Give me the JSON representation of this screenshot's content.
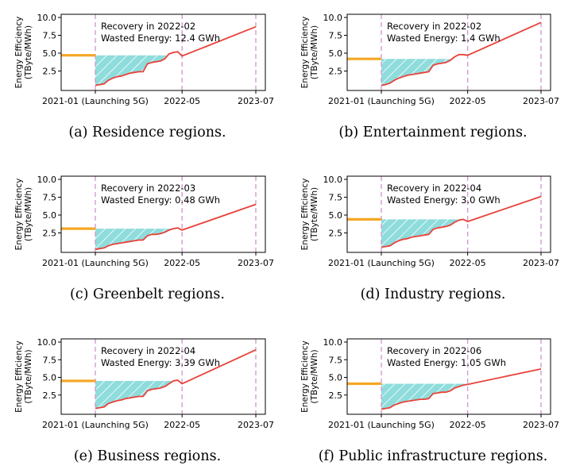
{
  "chart_data": [
    {
      "type": "line",
      "caption": "(a)  Residence regions.",
      "ylabel": [
        "Energy Efficiency",
        "(TByte/MWh)"
      ],
      "ylim": [
        0,
        10
      ],
      "yticks": [
        "2.5",
        "5.0",
        "7.5",
        "10.0"
      ],
      "xticks": [
        "2021-01 (Launching 5G)",
        "2022-05",
        "2023-07"
      ],
      "baseline": 4.7,
      "annotation": [
        "Recovery in 2022-02",
        "Wasted Energy: 12.4 GWh"
      ],
      "series": [
        {
          "values": [
            [
              0,
              0.5
            ],
            [
              1,
              0.6
            ],
            [
              2,
              0.7
            ],
            [
              3,
              1.2
            ],
            [
              4,
              1.5
            ],
            [
              5,
              1.7
            ],
            [
              6,
              1.8
            ],
            [
              7,
              2.0
            ],
            [
              8,
              2.2
            ],
            [
              9,
              2.3
            ],
            [
              10,
              2.4
            ],
            [
              11,
              2.4
            ],
            [
              12,
              3.5
            ],
            [
              13,
              3.7
            ],
            [
              14,
              3.8
            ],
            [
              15,
              3.9
            ],
            [
              16,
              4.2
            ],
            [
              17,
              4.9
            ],
            [
              18,
              5.1
            ],
            [
              19,
              5.2
            ],
            [
              20,
              4.6
            ],
            [
              37,
              8.7
            ]
          ]
        }
      ]
    },
    {
      "type": "line",
      "caption": "(b)  Entertainment regions.",
      "ylabel": [
        "Energy Efficiency",
        "(TByte/MWh)"
      ],
      "ylim": [
        0,
        10
      ],
      "yticks": [
        "2.5",
        "5.0",
        "7.5",
        "10.0"
      ],
      "xticks": [
        "2021-01 (Launching 5G)",
        "2022-05",
        "2023-07"
      ],
      "baseline": 4.2,
      "annotation": [
        "Recovery in 2022-02",
        "Wasted Energy: 1.4 GWh"
      ],
      "series": [
        {
          "values": [
            [
              0,
              0.5
            ],
            [
              1,
              0.6
            ],
            [
              2,
              0.8
            ],
            [
              3,
              1.2
            ],
            [
              4,
              1.5
            ],
            [
              5,
              1.7
            ],
            [
              6,
              1.9
            ],
            [
              7,
              2.0
            ],
            [
              8,
              2.1
            ],
            [
              9,
              2.2
            ],
            [
              10,
              2.3
            ],
            [
              11,
              2.4
            ],
            [
              12,
              3.3
            ],
            [
              13,
              3.5
            ],
            [
              14,
              3.6
            ],
            [
              15,
              3.7
            ],
            [
              16,
              4.0
            ],
            [
              17,
              4.5
            ],
            [
              18,
              4.8
            ],
            [
              19,
              4.8
            ],
            [
              20,
              4.7
            ],
            [
              37,
              9.3
            ]
          ]
        }
      ]
    },
    {
      "type": "line",
      "caption": "(c)  Greenbelt regions.",
      "ylabel": [
        "Energy Efficiency",
        "(TByte/MWh)"
      ],
      "ylim": [
        0,
        10
      ],
      "yticks": [
        "2.5",
        "5.0",
        "7.5",
        "10.0"
      ],
      "xticks": [
        "2021-01 (Launching 5G)",
        "2022-05",
        "2023-07"
      ],
      "baseline": 3.1,
      "annotation": [
        "Recovery in 2022-03",
        "Wasted Energy: 0.48 GWh"
      ],
      "series": [
        {
          "values": [
            [
              0,
              0.2
            ],
            [
              1,
              0.3
            ],
            [
              2,
              0.4
            ],
            [
              3,
              0.7
            ],
            [
              4,
              0.9
            ],
            [
              5,
              1.0
            ],
            [
              6,
              1.1
            ],
            [
              7,
              1.2
            ],
            [
              8,
              1.3
            ],
            [
              9,
              1.4
            ],
            [
              10,
              1.5
            ],
            [
              11,
              1.5
            ],
            [
              12,
              2.1
            ],
            [
              13,
              2.3
            ],
            [
              14,
              2.3
            ],
            [
              15,
              2.4
            ],
            [
              16,
              2.6
            ],
            [
              17,
              2.9
            ],
            [
              18,
              3.1
            ],
            [
              19,
              3.2
            ],
            [
              20,
              2.9
            ],
            [
              37,
              6.5
            ]
          ]
        }
      ]
    },
    {
      "type": "line",
      "caption": "(d)  Industry regions.",
      "ylabel": [
        "Energy Efficiency",
        "(TByte/MWh)"
      ],
      "ylim": [
        0,
        10
      ],
      "yticks": [
        "2.5",
        "5.0",
        "7.5",
        "10.0"
      ],
      "xticks": [
        "2021-01 (Launching 5G)",
        "2022-05",
        "2023-07"
      ],
      "baseline": 4.4,
      "annotation": [
        "Recovery in 2022-04",
        "Wasted Energy: 3.0 GWh"
      ],
      "series": [
        {
          "values": [
            [
              0,
              0.5
            ],
            [
              1,
              0.6
            ],
            [
              2,
              0.7
            ],
            [
              3,
              1.1
            ],
            [
              4,
              1.4
            ],
            [
              5,
              1.6
            ],
            [
              6,
              1.7
            ],
            [
              7,
              1.9
            ],
            [
              8,
              2.0
            ],
            [
              9,
              2.1
            ],
            [
              10,
              2.2
            ],
            [
              11,
              2.3
            ],
            [
              12,
              3.0
            ],
            [
              13,
              3.2
            ],
            [
              14,
              3.3
            ],
            [
              15,
              3.4
            ],
            [
              16,
              3.6
            ],
            [
              17,
              4.0
            ],
            [
              18,
              4.3
            ],
            [
              19,
              4.4
            ],
            [
              20,
              4.1
            ],
            [
              37,
              7.6
            ]
          ]
        }
      ]
    },
    {
      "type": "line",
      "caption": "(e)  Business regions.",
      "ylabel": [
        "Energy Efficiency",
        "(TByte/MWh)"
      ],
      "ylim": [
        0,
        10
      ],
      "yticks": [
        "2.5",
        "5.0",
        "7.5",
        "10.0"
      ],
      "xticks": [
        "2021-01 (Launching 5G)",
        "2022-05",
        "2023-07"
      ],
      "baseline": 4.5,
      "annotation": [
        "Recovery in 2022-04",
        "Wasted Energy: 3.39 GWh"
      ],
      "series": [
        {
          "values": [
            [
              0,
              0.6
            ],
            [
              1,
              0.7
            ],
            [
              2,
              0.8
            ],
            [
              3,
              1.3
            ],
            [
              4,
              1.5
            ],
            [
              5,
              1.7
            ],
            [
              6,
              1.8
            ],
            [
              7,
              2.0
            ],
            [
              8,
              2.1
            ],
            [
              9,
              2.2
            ],
            [
              10,
              2.3
            ],
            [
              11,
              2.3
            ],
            [
              12,
              3.1
            ],
            [
              13,
              3.3
            ],
            [
              14,
              3.4
            ],
            [
              15,
              3.5
            ],
            [
              16,
              3.7
            ],
            [
              17,
              4.1
            ],
            [
              18,
              4.5
            ],
            [
              19,
              4.6
            ],
            [
              20,
              4.1
            ],
            [
              37,
              8.9
            ]
          ]
        }
      ]
    },
    {
      "type": "line",
      "caption": "(f)  Public infrastructure regions.",
      "ylabel": [
        "Energy Efficiency",
        "(TByte/MWh)"
      ],
      "ylim": [
        0,
        10
      ],
      "yticks": [
        "2.5",
        "5.0",
        "7.5",
        "10.0"
      ],
      "xticks": [
        "2021-01 (Launching 5G)",
        "2022-05",
        "2023-07"
      ],
      "baseline": 4.1,
      "annotation": [
        "Recovery in 2022-06",
        "Wasted Energy: 1.05 GWh"
      ],
      "series": [
        {
          "values": [
            [
              0,
              0.5
            ],
            [
              1,
              0.6
            ],
            [
              2,
              0.7
            ],
            [
              3,
              1.1
            ],
            [
              4,
              1.3
            ],
            [
              5,
              1.5
            ],
            [
              6,
              1.6
            ],
            [
              7,
              1.7
            ],
            [
              8,
              1.8
            ],
            [
              9,
              1.9
            ],
            [
              10,
              1.9
            ],
            [
              11,
              2.0
            ],
            [
              12,
              2.7
            ],
            [
              13,
              2.8
            ],
            [
              14,
              2.9
            ],
            [
              15,
              2.9
            ],
            [
              16,
              3.1
            ],
            [
              17,
              3.5
            ],
            [
              18,
              3.7
            ],
            [
              19,
              3.9
            ],
            [
              20,
              4.0
            ],
            [
              37,
              6.2
            ]
          ]
        }
      ]
    }
  ],
  "colors": {
    "line": "#e8423a",
    "baseline": "#f5a623",
    "fill": "#8fdcdc",
    "vline": "#d59ad3",
    "axis": "#000000"
  }
}
